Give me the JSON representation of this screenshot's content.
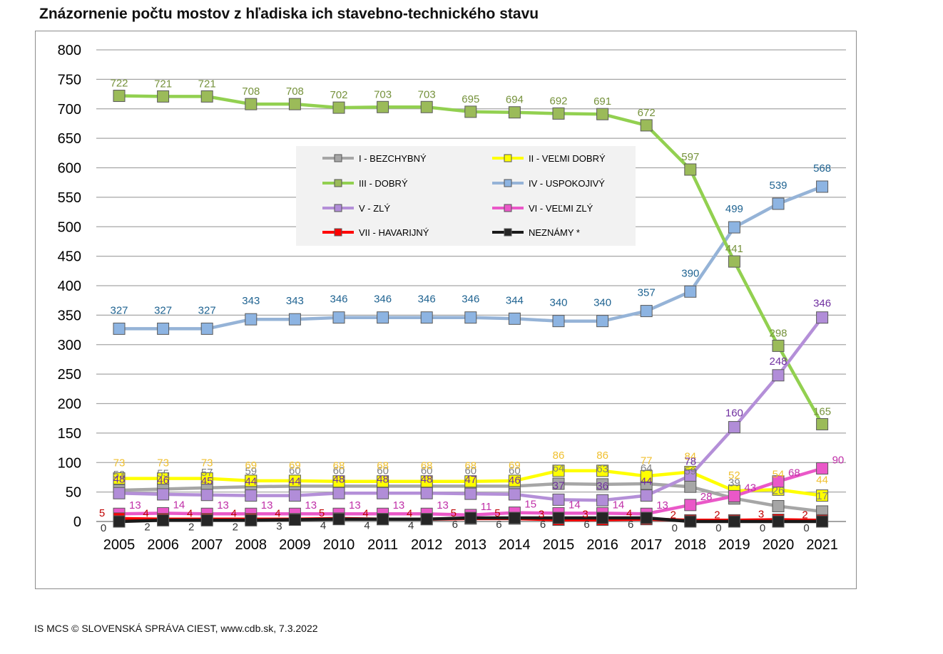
{
  "title": "Znázornenie počtu mostov z hľadiska ich stavebno-technického stavu",
  "footer": "IS MCS © SLOVENSKÁ SPRÁVA CIEST, www.cdb.sk, 7.3.2022",
  "chart_data": {
    "type": "line",
    "title": "Znázornenie počtu mostov z hľadiska ich stavebno-technického stavu",
    "xlabel": "",
    "ylabel": "",
    "ylim": [
      0,
      800
    ],
    "yticks": [
      0,
      50,
      100,
      150,
      200,
      250,
      300,
      350,
      400,
      450,
      500,
      550,
      600,
      650,
      700,
      750,
      800
    ],
    "grid": true,
    "legend_position": "center",
    "categories": [
      "2005",
      "2006",
      "2007",
      "2008",
      "2009",
      "2010",
      "2011",
      "2012",
      "2013",
      "2014",
      "2015",
      "2016",
      "2017",
      "2018",
      "2019",
      "2020",
      "2021"
    ],
    "series": [
      {
        "name": "I - BEZCHYBNÝ",
        "color": "#a6a6a6",
        "label_color": "#7f7f7f",
        "marker_color": "#a6a6a6",
        "values": [
          53,
          55,
          57,
          59,
          60,
          60,
          60,
          60,
          60,
          60,
          64,
          63,
          64,
          59,
          39,
          26,
          17
        ]
      },
      {
        "name": "II - VEĽMI DOBRÝ",
        "color": "#ffff00",
        "label_color": "#f0c030",
        "marker_color": "#ffff00",
        "values": [
          73,
          73,
          73,
          69,
          69,
          68,
          68,
          68,
          68,
          69,
          86,
          86,
          77,
          84,
          52,
          54,
          44
        ]
      },
      {
        "name": "III - DOBRÝ",
        "color": "#92d050",
        "label_color": "#76923c",
        "marker_color": "#9bbb59",
        "values": [
          722,
          721,
          721,
          708,
          708,
          702,
          703,
          703,
          695,
          694,
          692,
          691,
          672,
          597,
          441,
          298,
          165
        ]
      },
      {
        "name": "IV - USPOKOJIVÝ",
        "color": "#95b3d7",
        "label_color": "#1f6391",
        "marker_color": "#8db4e2",
        "values": [
          327,
          327,
          327,
          343,
          343,
          346,
          346,
          346,
          346,
          344,
          340,
          340,
          357,
          390,
          499,
          539,
          568
        ]
      },
      {
        "name": "V - ZLÝ",
        "color": "#b48fd8",
        "label_color": "#7030a0",
        "marker_color": "#b18dd8",
        "values": [
          48,
          46,
          45,
          44,
          44,
          48,
          48,
          48,
          47,
          46,
          37,
          36,
          44,
          78,
          160,
          248,
          346
        ]
      },
      {
        "name": "VI - VEĽMI ZLÝ",
        "color": "#ea58c8",
        "label_color": "#c030a8",
        "marker_color": "#ea58c8",
        "values": [
          13,
          14,
          13,
          13,
          13,
          13,
          13,
          13,
          11,
          15,
          14,
          14,
          13,
          28,
          43,
          68,
          90
        ]
      },
      {
        "name": "VII - HAVARIJNÝ",
        "color": "#ff0000",
        "label_color": "#c00000",
        "marker_color": "#ff0000",
        "values": [
          5,
          4,
          4,
          4,
          4,
          5,
          4,
          4,
          5,
          5,
          3,
          3,
          4,
          2,
          2,
          3,
          2
        ]
      },
      {
        "name": "NEZNÁMY *",
        "color": "#1a1a1a",
        "label_color": "#333333",
        "marker_color": "#262626",
        "values": [
          0,
          2,
          2,
          2,
          3,
          4,
          4,
          4,
          6,
          6,
          6,
          6,
          6,
          0,
          0,
          0,
          0
        ]
      }
    ]
  }
}
